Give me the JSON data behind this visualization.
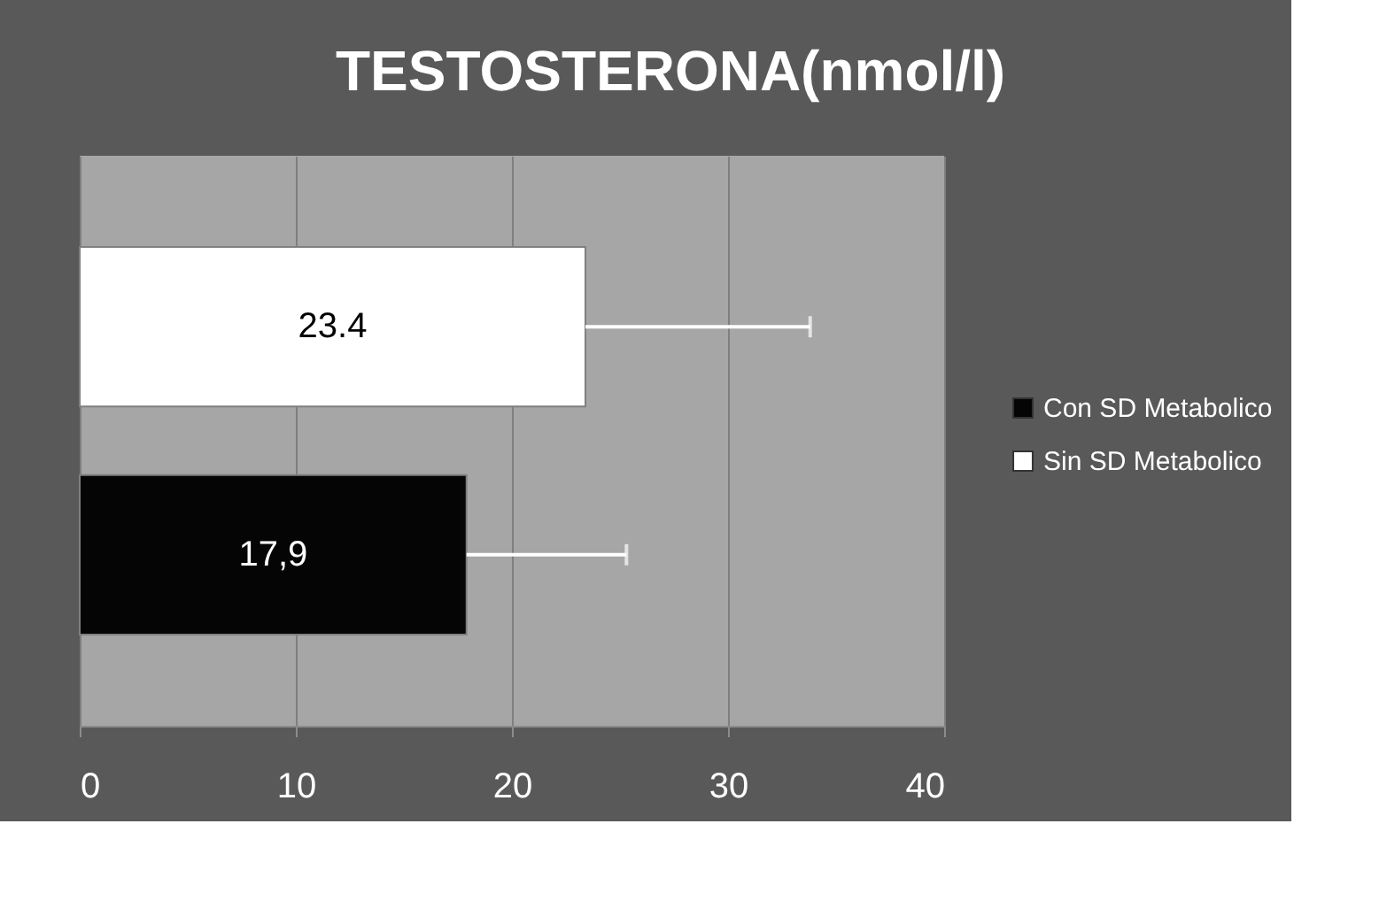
{
  "chart_data": {
    "type": "bar",
    "title": "TESTOSTERONA(nmol/l)",
    "orientation": "horizontal",
    "categories": [
      null
    ],
    "series": [
      {
        "name": "Con SD Metabolico",
        "color": "#050505",
        "values": [
          17.9
        ],
        "value_labels": [
          "17,9"
        ],
        "errors": [
          [
            17.9,
            25.3
          ]
        ]
      },
      {
        "name": "Sin SD Metabolico",
        "color": "#ffffff",
        "values": [
          23.4
        ],
        "value_labels": [
          "23.4"
        ],
        "errors": [
          [
            23.4,
            33.8
          ]
        ]
      }
    ],
    "xlim": [
      0,
      40
    ],
    "xticks": [
      0,
      10,
      20,
      30,
      40
    ],
    "grid": "x",
    "legend": "right",
    "tick_labels": "x"
  }
}
